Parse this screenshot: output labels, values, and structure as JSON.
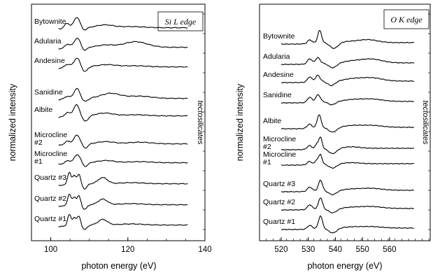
{
  "chart_data": [
    {
      "type": "line",
      "title": "",
      "legend_box": "Si L edge",
      "xlabel": "photon energy (eV)",
      "ylabel": "normalized intensity",
      "side_label": "tectosilicates",
      "xlim": [
        95,
        140
      ],
      "xticks": [
        100,
        120,
        140
      ],
      "grid": false,
      "legend_placement": "top-right",
      "series": [
        {
          "name": "Bytownite",
          "label_lines": [
            "Bytownite"
          ],
          "x_start": 102,
          "x_end": 135.5,
          "peaks": [
            [
              104.2,
              0.45,
              0.7
            ],
            [
              106.8,
              0.95,
              0.8
            ],
            [
              108.6,
              -0.25,
              0.7
            ],
            [
              114,
              0.25,
              2.2
            ],
            [
              121,
              0.1,
              3
            ]
          ]
        },
        {
          "name": "Adularia",
          "label_lines": [
            "Adularia"
          ],
          "x_start": 102,
          "x_end": 135.5,
          "peaks": [
            [
              104.4,
              0.35,
              0.7
            ],
            [
              106.9,
              0.85,
              0.8
            ],
            [
              108.7,
              -0.3,
              0.7
            ],
            [
              114.2,
              0.2,
              2.2
            ],
            [
              122,
              0.5,
              3
            ]
          ]
        },
        {
          "name": "Andesine",
          "label_lines": [
            "Andesine"
          ],
          "x_start": 102,
          "x_end": 135.5,
          "peaks": [
            [
              104.3,
              0.3,
              0.7
            ],
            [
              106.8,
              0.8,
              0.8
            ],
            [
              108.8,
              -0.45,
              0.7
            ],
            [
              114.5,
              0.2,
              2.5
            ],
            [
              122,
              0.1,
              3
            ]
          ]
        },
        {
          "name": "Sanidine",
          "label_lines": [
            "Sanidine"
          ],
          "x_start": 102,
          "x_end": 135.5,
          "peaks": [
            [
              104.2,
              0.25,
              0.7
            ],
            [
              106.8,
              0.9,
              0.8
            ],
            [
              108.8,
              -0.3,
              0.8
            ],
            [
              115.5,
              0.45,
              2.5
            ],
            [
              123,
              0.2,
              3
            ]
          ]
        },
        {
          "name": "Albite",
          "label_lines": [
            "Albite"
          ],
          "x_start": 102,
          "x_end": 135.5,
          "peaks": [
            [
              104.3,
              0.35,
              0.7
            ],
            [
              106.7,
              1.0,
              0.8
            ],
            [
              108.9,
              -0.5,
              0.8
            ],
            [
              114,
              0.25,
              2.2
            ],
            [
              122,
              0.1,
              3
            ]
          ]
        },
        {
          "name": "Microcline #2",
          "label_lines": [
            "Microcline",
            "#2"
          ],
          "x_start": 102,
          "x_end": 135.5,
          "peaks": [
            [
              104.3,
              0.3,
              0.7
            ],
            [
              106.8,
              0.8,
              0.8
            ],
            [
              108.9,
              -0.4,
              0.7
            ],
            [
              114.2,
              0.2,
              2.2
            ],
            [
              123,
              0.15,
              3
            ]
          ]
        },
        {
          "name": "Microcline #1",
          "label_lines": [
            "Microcline",
            "#1"
          ],
          "x_start": 102,
          "x_end": 135.5,
          "peaks": [
            [
              104.4,
              0.25,
              0.7
            ],
            [
              106.9,
              0.75,
              0.8
            ],
            [
              108.9,
              -0.35,
              0.7
            ],
            [
              114.3,
              0.2,
              2.2
            ],
            [
              123,
              0.1,
              3
            ]
          ]
        },
        {
          "name": "Quartz #3",
          "label_lines": [
            "Quartz  #3"
          ],
          "x_start": 102,
          "x_end": 135.5,
          "peaks": [
            [
              104.8,
              1.1,
              0.45
            ],
            [
              106.1,
              0.75,
              0.45
            ],
            [
              107.3,
              0.85,
              0.45
            ],
            [
              108.8,
              -0.45,
              0.6
            ],
            [
              113.5,
              0.55,
              1.2
            ],
            [
              121,
              0.1,
              3
            ]
          ]
        },
        {
          "name": "Quartz #2",
          "label_lines": [
            "Quartz  #2"
          ],
          "x_start": 102,
          "x_end": 135.5,
          "peaks": [
            [
              104.8,
              1.0,
              0.45
            ],
            [
              106.1,
              0.7,
              0.45
            ],
            [
              107.3,
              0.8,
              0.45
            ],
            [
              108.8,
              -0.4,
              0.6
            ],
            [
              113.5,
              0.5,
              1.2
            ],
            [
              121,
              0.1,
              3
            ]
          ]
        },
        {
          "name": "Quartz #1",
          "label_lines": [
            "Quartz  #1"
          ],
          "x_start": 102,
          "x_end": 135.5,
          "peaks": [
            [
              104.8,
              1.0,
              0.45
            ],
            [
              106.1,
              0.7,
              0.45
            ],
            [
              107.3,
              0.8,
              0.45
            ],
            [
              108.8,
              -0.4,
              0.6
            ],
            [
              113.5,
              0.5,
              1.2
            ],
            [
              121,
              0.1,
              3
            ]
          ]
        }
      ]
    },
    {
      "type": "line",
      "title": "",
      "legend_box": "O K edge",
      "xlabel": "photon energy (eV)",
      "ylabel": "normalized intensity",
      "side_label": "tectosilicates",
      "xlim": [
        512,
        575
      ],
      "xticks": [
        520,
        530,
        540,
        550,
        560
      ],
      "grid": false,
      "legend_placement": "top-right",
      "series": [
        {
          "name": "Bytownite",
          "label_lines": [
            "Bytownite"
          ],
          "x_start": 520,
          "x_end": 569,
          "peaks": [
            [
              530.5,
              0.35,
              0.8
            ],
            [
              534.2,
              1.25,
              0.7
            ],
            [
              539.5,
              -0.6,
              1.5
            ],
            [
              545,
              0.1,
              3
            ],
            [
              552,
              0.3,
              3.5
            ]
          ]
        },
        {
          "name": "Adularia",
          "label_lines": [
            "Adularia"
          ],
          "x_start": 520,
          "x_end": 569,
          "peaks": [
            [
              530.5,
              0.5,
              0.8
            ],
            [
              533.5,
              0.55,
              0.8
            ],
            [
              539,
              -0.5,
              1.5
            ],
            [
              546,
              0.15,
              3
            ],
            [
              553,
              0.4,
              4
            ]
          ]
        },
        {
          "name": "Andesine",
          "label_lines": [
            "Andesine"
          ],
          "x_start": 520,
          "x_end": 569,
          "peaks": [
            [
              530.5,
              0.5,
              0.8
            ],
            [
              533.5,
              0.6,
              0.8
            ],
            [
              538.5,
              -0.45,
              1.4
            ],
            [
              546,
              0.2,
              3
            ],
            [
              553,
              0.35,
              4
            ]
          ]
        },
        {
          "name": "Sanidine",
          "label_lines": [
            "Sanidine"
          ],
          "x_start": 520,
          "x_end": 569,
          "peaks": [
            [
              530.5,
              0.5,
              0.8
            ],
            [
              533.6,
              0.7,
              0.8
            ],
            [
              538.7,
              -0.35,
              1.4
            ],
            [
              546,
              0.15,
              3
            ],
            [
              553,
              0.25,
              4
            ]
          ]
        },
        {
          "name": "Albite",
          "label_lines": [
            "Albite"
          ],
          "x_start": 520,
          "x_end": 569,
          "peaks": [
            [
              530.4,
              0.4,
              0.8
            ],
            [
              534,
              1.3,
              0.7
            ],
            [
              539,
              -0.5,
              1.5
            ],
            [
              546,
              0.15,
              3
            ],
            [
              553,
              0.2,
              4
            ]
          ]
        },
        {
          "name": "Microcline #2",
          "label_lines": [
            "Microcline",
            "#2"
          ],
          "x_start": 520,
          "x_end": 569,
          "peaks": [
            [
              530.4,
              0.35,
              0.8
            ],
            [
              533.2,
              0.45,
              0.6
            ],
            [
              534.5,
              1.1,
              0.6
            ],
            [
              539,
              -0.55,
              1.5
            ],
            [
              546,
              0.15,
              3
            ]
          ]
        },
        {
          "name": "Microcline #1",
          "label_lines": [
            "Microcline",
            "#1"
          ],
          "x_start": 520,
          "x_end": 569,
          "peaks": [
            [
              530.4,
              0.3,
              0.8
            ],
            [
              533.2,
              0.4,
              0.6
            ],
            [
              534.5,
              0.9,
              0.6
            ],
            [
              539,
              -0.45,
              1.5
            ],
            [
              546,
              0.1,
              3
            ]
          ]
        },
        {
          "name": "Quartz #3",
          "label_lines": [
            "Quartz  #3"
          ],
          "x_start": 520,
          "x_end": 569,
          "peaks": [
            [
              530.5,
              0.4,
              0.8
            ],
            [
              534.5,
              1.05,
              0.7
            ],
            [
              539,
              -0.45,
              1.5
            ],
            [
              546,
              0.1,
              3
            ],
            [
              553,
              0.2,
              4
            ]
          ]
        },
        {
          "name": "Quartz #2",
          "label_lines": [
            "Quartz  #2"
          ],
          "x_start": 520,
          "x_end": 569,
          "peaks": [
            [
              530.5,
              0.45,
              0.8
            ],
            [
              534.5,
              1.1,
              0.7
            ],
            [
              539,
              -0.45,
              1.5
            ],
            [
              546,
              0.1,
              3
            ],
            [
              553,
              0.2,
              4
            ]
          ]
        },
        {
          "name": "Quartz #1",
          "label_lines": [
            "Quartz  #1"
          ],
          "x_start": 520,
          "x_end": 569,
          "peaks": [
            [
              530.5,
              0.35,
              0.8
            ],
            [
              534.5,
              1.25,
              0.7
            ],
            [
              539,
              -0.5,
              1.5
            ],
            [
              546,
              0.1,
              3
            ],
            [
              553,
              0.15,
              4
            ]
          ]
        }
      ]
    }
  ]
}
